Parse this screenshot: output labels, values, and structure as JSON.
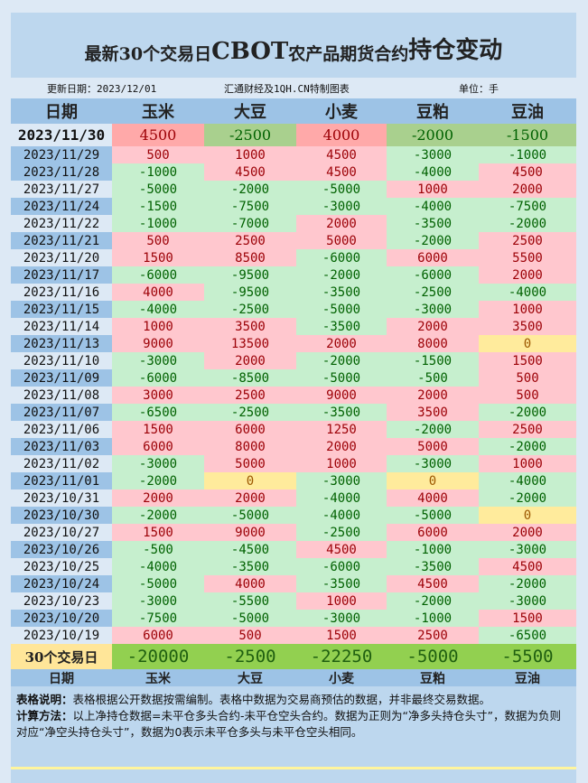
{
  "title": {
    "part1": "最新30个交易日",
    "part2": "CBOT",
    "part3": "农产品期货合约",
    "part4": "持仓变动"
  },
  "info": {
    "update": "更新日期：2023/12/01",
    "source": "汇通财经及1QH.CN特制图表",
    "unit": "单位：手"
  },
  "columns": [
    "日期",
    "玉米",
    "大豆",
    "小麦",
    "豆粕",
    "豆油"
  ],
  "latest": {
    "date": "2023/11/30",
    "values": [
      4500,
      -2500,
      4000,
      -2000,
      -1500
    ]
  },
  "rows": [
    {
      "date": "2023/11/29",
      "values": [
        500,
        1000,
        4500,
        -3000,
        -1000
      ]
    },
    {
      "date": "2023/11/28",
      "values": [
        -1000,
        4500,
        4500,
        -4000,
        4500
      ]
    },
    {
      "date": "2023/11/27",
      "values": [
        -5000,
        -2000,
        -5000,
        1000,
        2000
      ]
    },
    {
      "date": "2023/11/24",
      "values": [
        -1500,
        -7500,
        -3000,
        -4000,
        -7500
      ]
    },
    {
      "date": "2023/11/22",
      "values": [
        -1000,
        -7000,
        2000,
        -3500,
        -2000
      ]
    },
    {
      "date": "2023/11/21",
      "values": [
        500,
        2500,
        5000,
        -2000,
        2500
      ]
    },
    {
      "date": "2023/11/20",
      "values": [
        1500,
        8500,
        -6000,
        6000,
        5500
      ]
    },
    {
      "date": "2023/11/17",
      "values": [
        -6000,
        -9500,
        -2000,
        -6000,
        2000
      ]
    },
    {
      "date": "2023/11/16",
      "values": [
        4000,
        -9500,
        -3500,
        -2500,
        -4000
      ]
    },
    {
      "date": "2023/11/15",
      "values": [
        -4000,
        -2500,
        -5000,
        -3000,
        1000
      ]
    },
    {
      "date": "2023/11/14",
      "values": [
        1000,
        3500,
        -3500,
        2000,
        3500
      ]
    },
    {
      "date": "2023/11/13",
      "values": [
        9000,
        13500,
        2000,
        8000,
        0
      ]
    },
    {
      "date": "2023/11/10",
      "values": [
        -3000,
        2000,
        -2000,
        -1500,
        1500
      ]
    },
    {
      "date": "2023/11/09",
      "values": [
        -6000,
        -8500,
        -5000,
        -500,
        500
      ]
    },
    {
      "date": "2023/11/08",
      "values": [
        3000,
        2500,
        9000,
        2000,
        500
      ]
    },
    {
      "date": "2023/11/07",
      "values": [
        -6500,
        -2500,
        -3500,
        3500,
        -2000
      ]
    },
    {
      "date": "2023/11/06",
      "values": [
        1500,
        6000,
        1250,
        -2000,
        2500
      ]
    },
    {
      "date": "2023/11/03",
      "values": [
        6000,
        8000,
        2000,
        5000,
        -2000
      ]
    },
    {
      "date": "2023/11/02",
      "values": [
        -3000,
        5000,
        1000,
        -3000,
        1000
      ]
    },
    {
      "date": "2023/11/01",
      "values": [
        -2000,
        0,
        -3000,
        0,
        -4000
      ]
    },
    {
      "date": "2023/10/31",
      "values": [
        2000,
        2000,
        -4000,
        4000,
        -2000
      ]
    },
    {
      "date": "2023/10/30",
      "values": [
        -2000,
        -5000,
        -4000,
        -5000,
        0
      ]
    },
    {
      "date": "2023/10/27",
      "values": [
        1500,
        9000,
        -2500,
        6000,
        2000
      ]
    },
    {
      "date": "2023/10/26",
      "values": [
        -500,
        -4500,
        4500,
        -1000,
        -3000
      ]
    },
    {
      "date": "2023/10/25",
      "values": [
        -4000,
        -3500,
        -6000,
        -3500,
        4500
      ]
    },
    {
      "date": "2023/10/24",
      "values": [
        -5000,
        4000,
        -3500,
        4500,
        -2000
      ]
    },
    {
      "date": "2023/10/23",
      "values": [
        -3000,
        -5500,
        1000,
        -2000,
        -3000
      ]
    },
    {
      "date": "2023/10/20",
      "values": [
        -7500,
        -5000,
        -3000,
        -1000,
        1500
      ]
    },
    {
      "date": "2023/10/19",
      "values": [
        6000,
        500,
        1500,
        2500,
        -6500
      ]
    }
  ],
  "summary": {
    "label": "30个交易日",
    "values": [
      -20000,
      -2500,
      -22250,
      -5000,
      -5500
    ]
  },
  "notes": {
    "desc_label": "表格说明：",
    "desc_text": "表格根据公开数据按需编制。表格中数据为交易商预估的数据，并非最终交易数据。",
    "calc_label": "计算方法：",
    "calc_text": "以上净持仓数据=未平仓多头合约-未平仓空头合约。数据为正则为“净多头持仓头寸”，数据为负则对应“净空头持仓头寸”，数据为0表示未平仓多头与未平仓空头相同。"
  },
  "colors": {
    "positive_bg": "#ffc7ce",
    "negative_bg": "#c6efce",
    "zero_bg": "#ffeb9c",
    "header_bg": "#9dc3e6",
    "summary_bg": "#92d050"
  }
}
